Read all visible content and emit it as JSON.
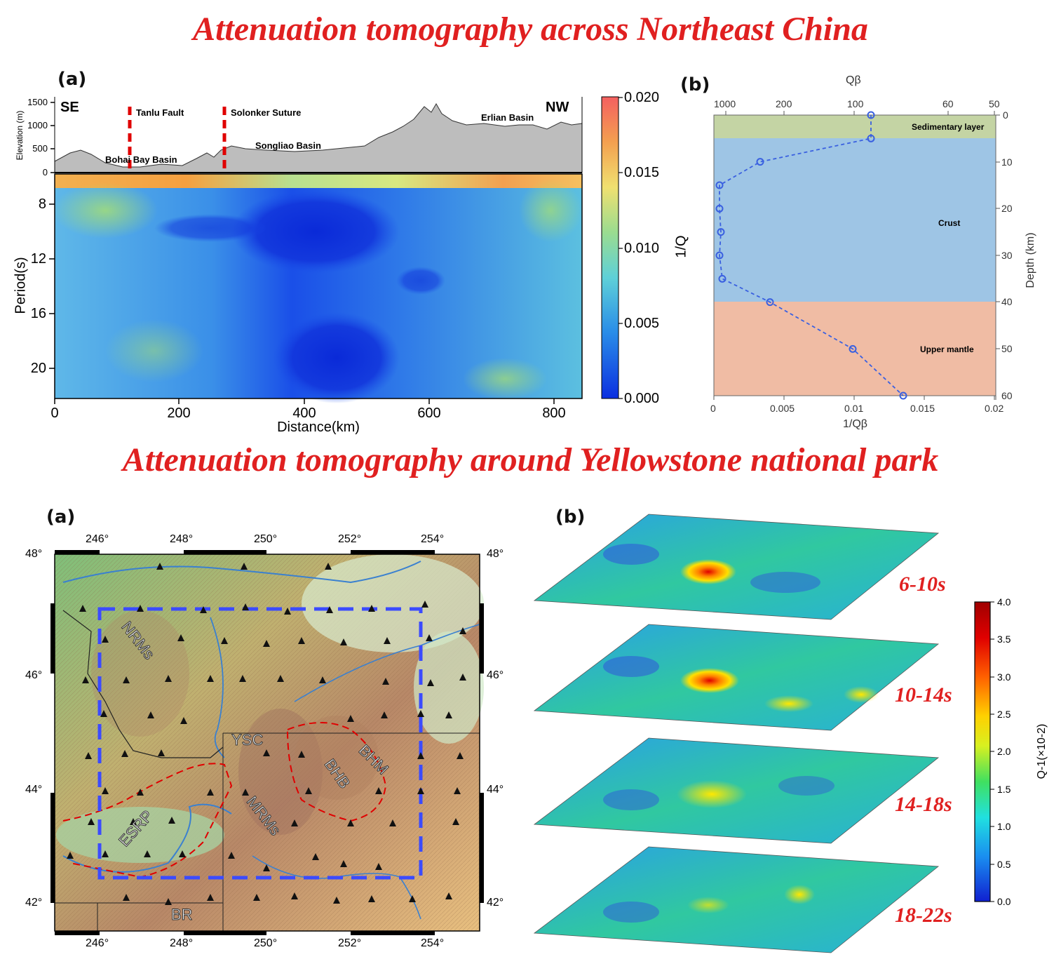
{
  "titles": {
    "top": "Attenuation tomography across Northeast China",
    "bottom": "Attenuation tomography around Yellowstone national park"
  },
  "panel_labels": {
    "a": "(a)",
    "b": "(b)"
  },
  "ne_china_profile": {
    "elev_axis_label": "Elevation (m)",
    "elev_ticks": [
      "1500",
      "1000",
      "500",
      "0"
    ],
    "left_end": "SE",
    "right_end": "NW",
    "features": [
      "Tanlu Fault",
      "Solonker Suture",
      "Bohai Bay Basin",
      "Songliao Basin",
      "Erlian Basin"
    ],
    "xlabel": "Distance(km)",
    "ylabel": "Period(s)",
    "xticks": [
      "0",
      "200",
      "400",
      "600",
      "800"
    ],
    "yticks": [
      "8",
      "12",
      "16",
      "20"
    ],
    "colorbar_label": "1/Q",
    "colorbar_ticks": [
      "0.020",
      "0.015",
      "0.010",
      "0.005",
      "0.000"
    ]
  },
  "chart_data": [
    {
      "type": "line",
      "title": "",
      "top_axis_label": "Qβ",
      "top_ticks": [
        "1000",
        "200",
        "100",
        "60",
        "50"
      ],
      "xlabel": "1/Qβ",
      "ylabel": "Depth (km)",
      "xticks": [
        "0",
        "0.005",
        "0.01",
        "0.015",
        "0.02"
      ],
      "yticks": [
        "0",
        "10",
        "20",
        "30",
        "40",
        "50",
        "60"
      ],
      "xlim": [
        0,
        0.02
      ],
      "ylim": [
        0,
        60
      ],
      "layers": [
        {
          "name": "Sedimentary layer",
          "top": 0,
          "bottom": 5,
          "color": "#c4d4a4"
        },
        {
          "name": "Crust",
          "top": 5,
          "bottom": 40,
          "color": "#9ec5e5"
        },
        {
          "name": "Upper mantle",
          "top": 40,
          "bottom": 60,
          "color": "#f0bca4"
        }
      ],
      "x": [
        0.0112,
        0.0112,
        0.0033,
        0.0004,
        0.0004,
        0.0005,
        0.0004,
        0.0006,
        0.004,
        0.0099,
        0.0135
      ],
      "y": [
        0,
        5,
        10,
        15,
        20,
        25,
        30,
        35,
        40,
        50,
        60
      ]
    }
  ],
  "yellowstone_map": {
    "lon_ticks": [
      "246°",
      "248°",
      "250°",
      "252°",
      "254°"
    ],
    "lat_ticks": [
      "48°",
      "46°",
      "44°",
      "42°"
    ],
    "regions": [
      "NRMs",
      "ESRP",
      "MRMs",
      "BHB",
      "BHM",
      "YSC",
      "BR"
    ]
  },
  "slices": {
    "labels": [
      "6-10s",
      "10-14s",
      "14-18s",
      "18-22s"
    ],
    "colorbar_label": "Q-1(×10-2)",
    "colorbar_ticks": [
      "4.0",
      "3.5",
      "3.0",
      "2.5",
      "2.0",
      "1.5",
      "1.0",
      "0.5",
      "0.0"
    ]
  },
  "colors": {
    "title": "#e02020",
    "dashed_box": "#3b4bff",
    "fault": "#e00000"
  }
}
